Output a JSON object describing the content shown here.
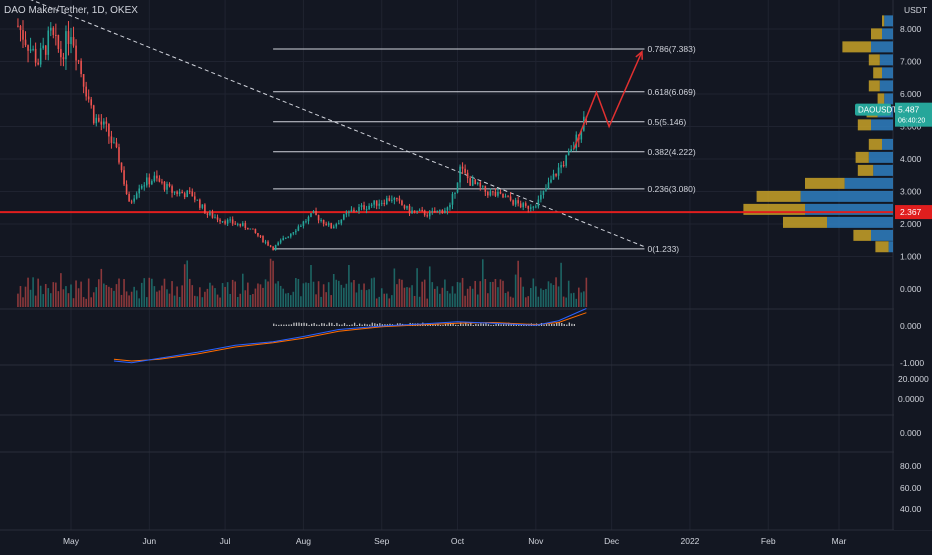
{
  "header": {
    "title": "DAO Maker/Tether, 1D, OKEX"
  },
  "colors": {
    "background": "#131722",
    "grid": "#1f2330",
    "up": "#26a69a",
    "down": "#ef5350",
    "support_line": "#e01e1e",
    "projection": "#e03030",
    "fib_line": "#d1d4dc",
    "vp_up": "#2f7fc1",
    "vp_down": "#c9a227",
    "macd": "#2962ff",
    "signal": "#ff6d00",
    "axis_text": "#d1d4dc"
  },
  "chart_data": [
    {
      "type": "candlestick",
      "name": "price",
      "symbol": "DAOUSDT",
      "quote_unit": "USDT",
      "last_price": "5.487",
      "countdown": "06:40:20",
      "support_level": 2.367,
      "support_label": "2.367",
      "y_ticks": [
        "8.000",
        "7.000",
        "6.000",
        "5.000",
        "4.000",
        "3.000",
        "2.000",
        "1.000"
      ],
      "ylim": [
        0.8,
        8.6
      ],
      "x_labels": [
        "May",
        "Jun",
        "Jul",
        "Aug",
        "Sep",
        "Oct",
        "Nov",
        "Dec",
        "2022",
        "Feb",
        "Mar"
      ],
      "x_label_dates": [
        "2021-05-01",
        "2021-06-01",
        "2021-07-01",
        "2021-08-01",
        "2021-09-01",
        "2021-10-01",
        "2021-11-01",
        "2021-12-01",
        "2022-01-01",
        "2022-02-01",
        "2022-03-01"
      ],
      "close_path": [
        {
          "date": "2021-04-10",
          "close": 8.1
        },
        {
          "date": "2021-04-18",
          "close": 7.0
        },
        {
          "date": "2021-04-23",
          "close": 7.8
        },
        {
          "date": "2021-04-27",
          "close": 7.2
        },
        {
          "date": "2021-05-01",
          "close": 8.0
        },
        {
          "date": "2021-05-05",
          "close": 6.7
        },
        {
          "date": "2021-05-10",
          "close": 5.3
        },
        {
          "date": "2021-05-15",
          "close": 4.9
        },
        {
          "date": "2021-05-20",
          "close": 4.0
        },
        {
          "date": "2021-05-24",
          "close": 2.6
        },
        {
          "date": "2021-05-28",
          "close": 3.2
        },
        {
          "date": "2021-06-03",
          "close": 3.4
        },
        {
          "date": "2021-06-10",
          "close": 3.0
        },
        {
          "date": "2021-06-18",
          "close": 2.9
        },
        {
          "date": "2021-06-24",
          "close": 2.3
        },
        {
          "date": "2021-07-01",
          "close": 2.1
        },
        {
          "date": "2021-07-10",
          "close": 1.9
        },
        {
          "date": "2021-07-20",
          "close": 1.25
        },
        {
          "date": "2021-07-28",
          "close": 1.8
        },
        {
          "date": "2021-08-05",
          "close": 2.3
        },
        {
          "date": "2021-08-12",
          "close": 1.9
        },
        {
          "date": "2021-08-20",
          "close": 2.4
        },
        {
          "date": "2021-08-28",
          "close": 2.6
        },
        {
          "date": "2021-09-05",
          "close": 2.8
        },
        {
          "date": "2021-09-12",
          "close": 2.4
        },
        {
          "date": "2021-09-20",
          "close": 2.3
        },
        {
          "date": "2021-09-28",
          "close": 2.5
        },
        {
          "date": "2021-10-02",
          "close": 3.7
        },
        {
          "date": "2021-10-06",
          "close": 3.3
        },
        {
          "date": "2021-10-12",
          "close": 3.0
        },
        {
          "date": "2021-10-20",
          "close": 2.8
        },
        {
          "date": "2021-10-28",
          "close": 2.5
        },
        {
          "date": "2021-11-02",
          "close": 2.7
        },
        {
          "date": "2021-11-06",
          "close": 3.2
        },
        {
          "date": "2021-11-10",
          "close": 3.7
        },
        {
          "date": "2021-11-15",
          "close": 4.2
        },
        {
          "date": "2021-11-19",
          "close": 5.0
        },
        {
          "date": "2021-11-21",
          "close": 5.5
        }
      ],
      "fib_levels": [
        {
          "ratio": 0.786,
          "price": 7.383,
          "label": "0.786(7.383)"
        },
        {
          "ratio": 0.618,
          "price": 6.069,
          "label": "0.618(6.069)"
        },
        {
          "ratio": 0.5,
          "price": 5.146,
          "label": "0.5(5.146)"
        },
        {
          "ratio": 0.382,
          "price": 4.222,
          "label": "0.382(4.222)"
        },
        {
          "ratio": 0.236,
          "price": 3.08,
          "label": "0.236(3.080)"
        },
        {
          "ratio": 0,
          "price": 1.233,
          "label": "0(1.233)"
        }
      ],
      "fib_start_date": "2021-07-20",
      "fib_end_date": "2021-12-14",
      "trendline": [
        {
          "date": "2021-04-12",
          "price": 9.0
        },
        {
          "date": "2021-12-14",
          "price": 1.3
        }
      ],
      "projection_path": [
        {
          "date": "2021-11-16",
          "price": 4.3
        },
        {
          "date": "2021-11-25",
          "price": 6.05
        },
        {
          "date": "2021-11-30",
          "price": 5.0
        },
        {
          "date": "2021-12-13",
          "price": 7.3
        }
      ],
      "volume_profile": [
        {
          "price": 8.25,
          "up": 0.04,
          "down": 0.01
        },
        {
          "price": 7.85,
          "up": 0.05,
          "down": 0.05
        },
        {
          "price": 7.45,
          "up": 0.1,
          "down": 0.13
        },
        {
          "price": 7.05,
          "up": 0.06,
          "down": 0.05
        },
        {
          "price": 6.65,
          "up": 0.05,
          "down": 0.04
        },
        {
          "price": 6.25,
          "up": 0.06,
          "down": 0.05
        },
        {
          "price": 5.85,
          "up": 0.04,
          "down": 0.03
        },
        {
          "price": 5.45,
          "up": 0.07,
          "down": 0.05
        },
        {
          "price": 5.05,
          "up": 0.1,
          "down": 0.06
        },
        {
          "price": 4.45,
          "up": 0.05,
          "down": 0.06
        },
        {
          "price": 4.05,
          "up": 0.11,
          "down": 0.06
        },
        {
          "price": 3.65,
          "up": 0.09,
          "down": 0.07
        },
        {
          "price": 3.25,
          "up": 0.22,
          "down": 0.18
        },
        {
          "price": 2.85,
          "up": 0.42,
          "down": 0.2
        },
        {
          "price": 2.45,
          "up": 0.4,
          "down": 0.28
        },
        {
          "price": 2.05,
          "up": 0.3,
          "down": 0.2
        },
        {
          "price": 1.65,
          "up": 0.1,
          "down": 0.08
        },
        {
          "price": 1.3,
          "up": 0.02,
          "down": 0.06
        }
      ]
    },
    {
      "type": "bar",
      "name": "volume",
      "y_tick_label": "0.000"
    },
    {
      "type": "line",
      "name": "macd",
      "y_ticks": [
        "0.000",
        "-1.000"
      ],
      "macd_path": [
        {
          "date": "2021-05-18",
          "value": -1.0
        },
        {
          "date": "2021-05-25",
          "value": -1.05
        },
        {
          "date": "2021-06-05",
          "value": -0.92
        },
        {
          "date": "2021-06-20",
          "value": -0.75
        },
        {
          "date": "2021-07-05",
          "value": -0.55
        },
        {
          "date": "2021-07-20",
          "value": -0.45
        },
        {
          "date": "2021-08-01",
          "value": -0.3
        },
        {
          "date": "2021-08-15",
          "value": -0.1
        },
        {
          "date": "2021-09-01",
          "value": 0.0
        },
        {
          "date": "2021-09-15",
          "value": 0.05
        },
        {
          "date": "2021-10-01",
          "value": 0.12
        },
        {
          "date": "2021-10-15",
          "value": 0.08
        },
        {
          "date": "2021-11-01",
          "value": 0.02
        },
        {
          "date": "2021-11-10",
          "value": 0.15
        },
        {
          "date": "2021-11-21",
          "value": 0.5
        }
      ],
      "signal_path": [
        {
          "date": "2021-05-18",
          "value": -0.95
        },
        {
          "date": "2021-05-25",
          "value": -1.0
        },
        {
          "date": "2021-06-05",
          "value": -0.95
        },
        {
          "date": "2021-06-20",
          "value": -0.8
        },
        {
          "date": "2021-07-05",
          "value": -0.6
        },
        {
          "date": "2021-07-20",
          "value": -0.48
        },
        {
          "date": "2021-08-01",
          "value": -0.35
        },
        {
          "date": "2021-08-15",
          "value": -0.15
        },
        {
          "date": "2021-09-01",
          "value": -0.02
        },
        {
          "date": "2021-09-15",
          "value": 0.03
        },
        {
          "date": "2021-10-01",
          "value": 0.08
        },
        {
          "date": "2021-10-15",
          "value": 0.1
        },
        {
          "date": "2021-11-01",
          "value": 0.04
        },
        {
          "date": "2021-11-10",
          "value": 0.1
        },
        {
          "date": "2021-11-21",
          "value": 0.38
        }
      ]
    },
    {
      "type": "line",
      "name": "indicator-3",
      "y_ticks": [
        "20.0000",
        "0.0000"
      ]
    },
    {
      "type": "line",
      "name": "indicator-4",
      "y_ticks": [
        "0.000"
      ]
    },
    {
      "type": "line",
      "name": "indicator-5",
      "y_ticks": [
        "80.00",
        "60.00",
        "40.00"
      ]
    }
  ]
}
